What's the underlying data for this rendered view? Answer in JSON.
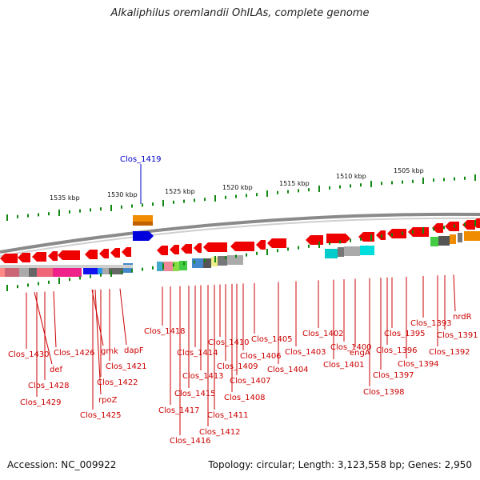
{
  "title": "Alkaliphilus oremlandii OhILAs, complete genome",
  "footer": {
    "accession": "Accession: NC_009922",
    "summary": "Topology: circular; Length: 3,123,558 bp; Genes: 2,950"
  },
  "colors": {
    "gene_red": "#ee0000",
    "label_red": "#cc0000",
    "highlight_blue": "#0000cc",
    "scale_green": "#118811",
    "backbone": "#8a8a8a",
    "orange": "#f08c00"
  },
  "scale": {
    "ticks": [
      "1535 kbp",
      "1530 kbp",
      "1525 kbp",
      "1520 kbp",
      "1515 kbp",
      "1510 kbp",
      "1505 kbp"
    ]
  },
  "highlighted_gene": "Clos_1419",
  "gene_labels": [
    "Clos_1430",
    "def",
    "Clos_1428",
    "Clos_1429",
    "Clos_1426",
    "rpoZ",
    "gmk",
    "Clos_1422",
    "Clos_1425",
    "Clos_1421",
    "dapF",
    "Clos_1418",
    "Clos_1417",
    "Clos_1416",
    "Clos_1415",
    "Clos_1414",
    "Clos_1413",
    "Clos_1412",
    "Clos_1411",
    "Clos_1410",
    "Clos_1409",
    "Clos_1408",
    "Clos_1407",
    "Clos_1406",
    "Clos_1405",
    "Clos_1404",
    "Clos_1403",
    "Clos_1402",
    "Clos_1401",
    "Clos_1400",
    "engA",
    "Clos_1398",
    "Clos_1397",
    "Clos_1396",
    "Clos_1395",
    "Clos_1394",
    "Clos_1393",
    "Clos_1392",
    "nrdR",
    "Clos_1391"
  ]
}
